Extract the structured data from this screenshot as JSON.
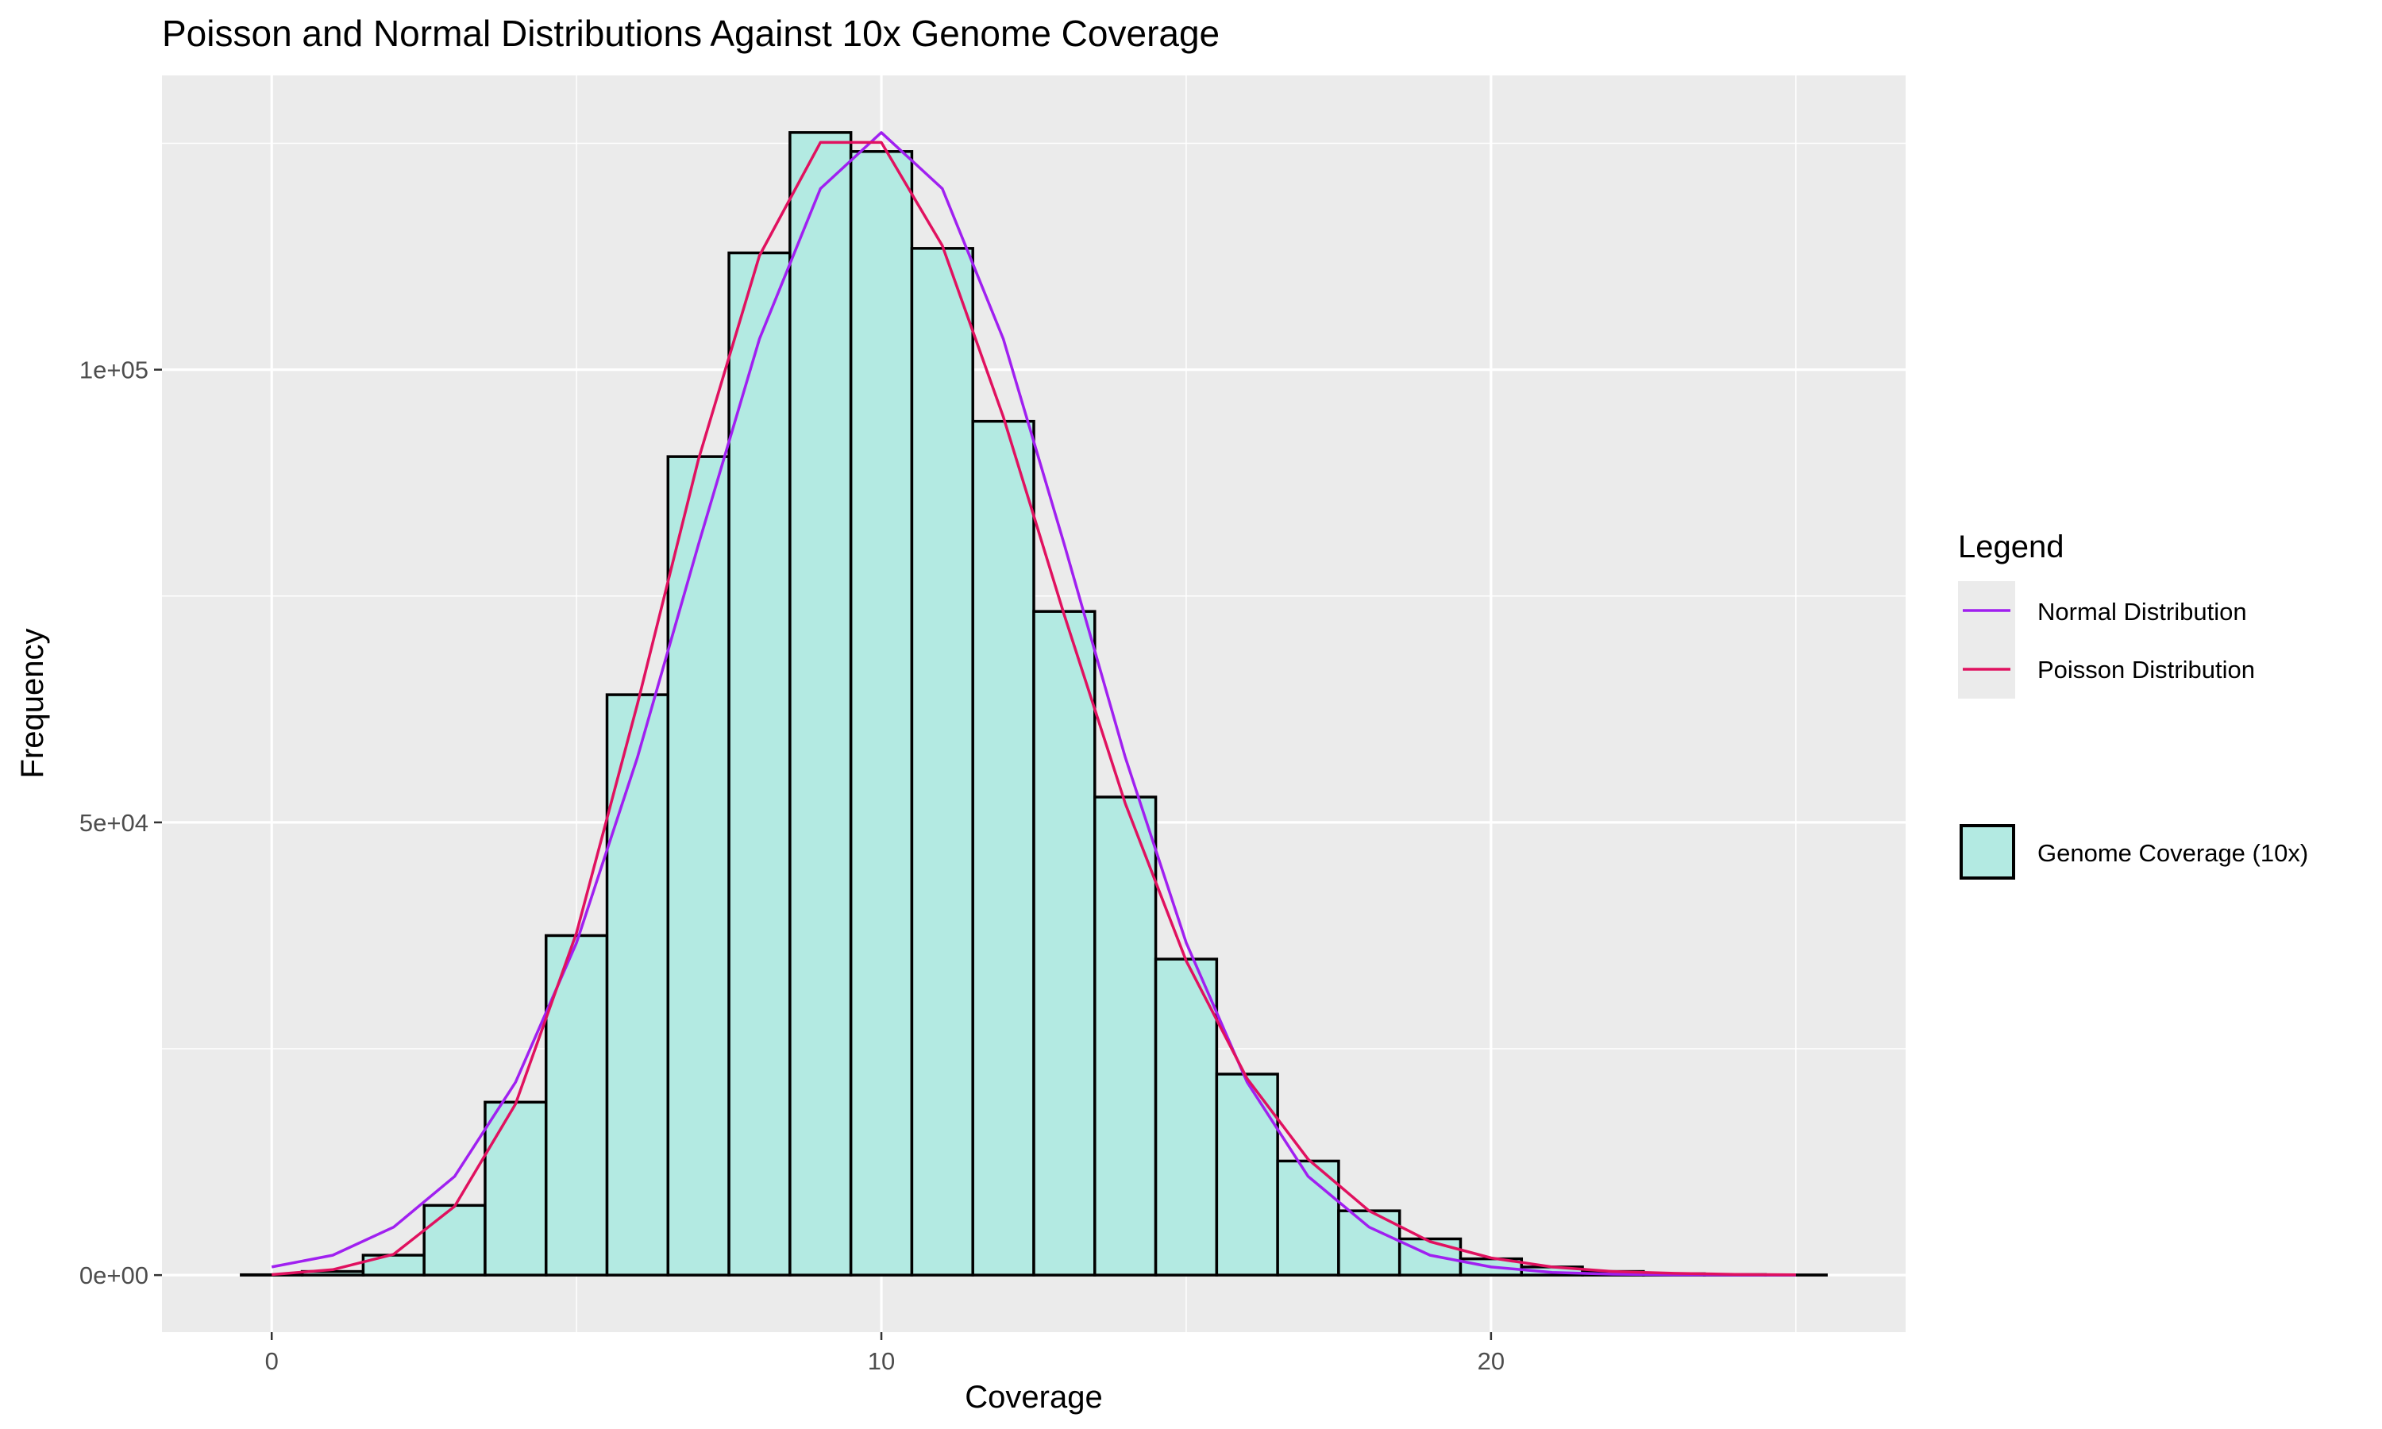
{
  "colors": {
    "panel_bg": "#EBEBEB",
    "grid": "#FFFFFF",
    "bar_fill": "#B3EAE2",
    "bar_stroke": "#000000",
    "normal": "#A020F0",
    "poisson": "#E0115F"
  },
  "chart_data": {
    "type": "bar",
    "title": "Poisson and Normal Distributions Against 10x Genome Coverage",
    "xlabel": "Coverage",
    "ylabel": "Frequency",
    "xlim": [
      -1.8,
      26.8
    ],
    "ylim": [
      -6300,
      132500
    ],
    "x_ticks": [
      0,
      10,
      20
    ],
    "x_tick_labels": [
      "0",
      "10",
      "20"
    ],
    "y_ticks": [
      0,
      50000,
      100000
    ],
    "y_tick_labels": [
      "0e+00",
      "5e+04",
      "1e+05"
    ],
    "grid": true,
    "legend": {
      "position": "right",
      "title": "Legend",
      "line_entries": [
        "Normal Distribution",
        "Poisson Distribution"
      ],
      "fill_entries": [
        "Genome Coverage (10x)"
      ]
    },
    "histogram": {
      "name": "Genome Coverage (10x)",
      "bin_width": 1,
      "x": [
        0,
        1,
        2,
        3,
        4,
        5,
        6,
        7,
        8,
        9,
        10,
        11,
        12,
        13,
        14,
        15,
        16,
        17,
        18,
        19,
        20,
        21,
        22,
        23,
        24,
        25
      ],
      "values": [
        40,
        400,
        2200,
        7700,
        19100,
        37500,
        64100,
        90400,
        112900,
        126200,
        124100,
        113400,
        94300,
        73300,
        52800,
        34900,
        22200,
        12600,
        7100,
        4000,
        1800,
        900,
        400,
        150,
        60,
        20
      ]
    },
    "series": [
      {
        "name": "Normal Distribution",
        "x": [
          0,
          1,
          2,
          3,
          4,
          5,
          6,
          7,
          8,
          9,
          10,
          11,
          12,
          13,
          14,
          15,
          16,
          17,
          18,
          19,
          20,
          21,
          22,
          23,
          24,
          25
        ],
        "values": [
          900,
          2200,
          5300,
          10900,
          21300,
          36700,
          57200,
          80700,
          103400,
          120000,
          126200,
          120000,
          103400,
          80700,
          57200,
          36700,
          21300,
          10900,
          5300,
          2200,
          900,
          300,
          100,
          30,
          10,
          3
        ]
      },
      {
        "name": "Poisson Distribution",
        "x": [
          0,
          1,
          2,
          3,
          4,
          5,
          6,
          7,
          8,
          9,
          10,
          11,
          12,
          13,
          14,
          15,
          16,
          17,
          18,
          19,
          20,
          21,
          22,
          23,
          24,
          25
        ],
        "values": [
          60,
          600,
          2300,
          7600,
          18900,
          37800,
          63100,
          90100,
          112600,
          125100,
          125100,
          113700,
          94800,
          72900,
          52100,
          34700,
          21700,
          12800,
          7100,
          3700,
          1900,
          900,
          400,
          200,
          80,
          30
        ]
      }
    ]
  }
}
